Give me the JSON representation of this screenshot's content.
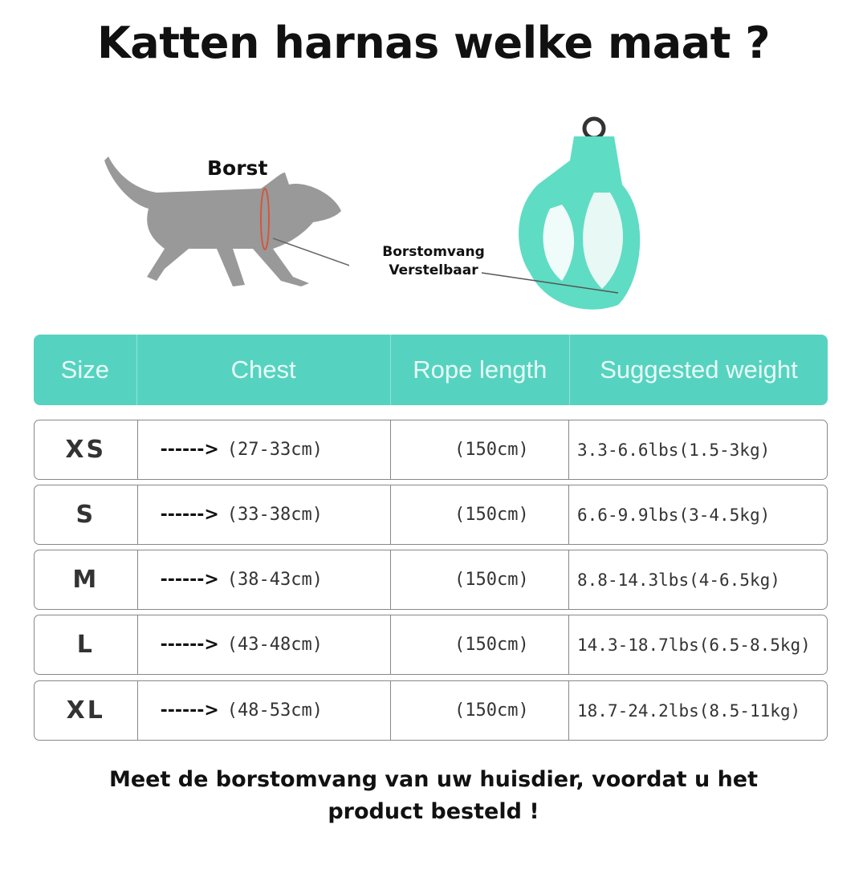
{
  "title": "Katten harnas welke maat ?",
  "illustration": {
    "chest_label": "Borst",
    "harness_label_line1": "Borstomvang",
    "harness_label_line2": "Verstelbaar",
    "harness_color": "#5fdcc4"
  },
  "table": {
    "header_color": "#56d3c0",
    "headers": [
      "Size",
      "Chest",
      "Rope length",
      "Suggested weight"
    ],
    "arrow": "------>",
    "rows": [
      {
        "size": "XS",
        "chest": "(27-33cm)",
        "rope": "(150cm)",
        "weight": "3.3-6.6lbs(1.5-3kg)"
      },
      {
        "size": "S",
        "chest": "(33-38cm)",
        "rope": "(150cm)",
        "weight": "6.6-9.9lbs(3-4.5kg)"
      },
      {
        "size": "M",
        "chest": "(38-43cm)",
        "rope": "(150cm)",
        "weight": "8.8-14.3lbs(4-6.5kg)"
      },
      {
        "size": "L",
        "chest": "(43-48cm)",
        "rope": "(150cm)",
        "weight": "14.3-18.7lbs(6.5-8.5kg)"
      },
      {
        "size": "XL",
        "chest": "(48-53cm)",
        "rope": "(150cm)",
        "weight": "18.7-24.2lbs(8.5-11kg)"
      }
    ]
  },
  "footer": {
    "line1": "Meet de borstomvang van uw huisdier, voordat u het",
    "line2": "product besteld !"
  }
}
